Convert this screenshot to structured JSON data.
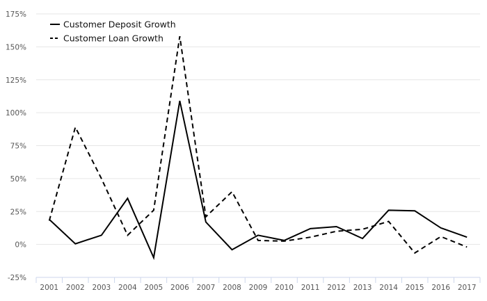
{
  "chart_data": {
    "type": "line",
    "title": "",
    "xlabel": "",
    "ylabel": "",
    "x": [
      "2001",
      "2002",
      "2003",
      "2004",
      "2005",
      "2006",
      "2007",
      "2008",
      "2009",
      "2010",
      "2011",
      "2012",
      "2013",
      "2014",
      "2015",
      "2016",
      "2017"
    ],
    "ylim": [
      -25,
      175
    ],
    "yticks": [
      -25,
      0,
      25,
      50,
      75,
      100,
      125,
      150,
      175
    ],
    "ytick_labels": [
      "-25%",
      "0%",
      "25%",
      "50%",
      "75%",
      "100%",
      "125%",
      "150%",
      "175%"
    ],
    "grid": true,
    "legend_position": "top-left",
    "series": [
      {
        "name": "Customer Deposit Growth",
        "style": "solid",
        "color": "#000000",
        "values": [
          19,
          0.5,
          7,
          35,
          -10,
          109,
          17,
          -4,
          7,
          3,
          12,
          13.5,
          4.5,
          26,
          25.5,
          12.5,
          5.5
        ]
      },
      {
        "name": "Customer Loan Growth",
        "style": "dashed",
        "color": "#000000",
        "values": [
          18,
          89,
          50,
          7,
          26,
          158,
          21,
          40,
          3,
          2.5,
          5.5,
          10,
          11.5,
          17.5,
          -6.5,
          6,
          -2
        ]
      }
    ]
  }
}
